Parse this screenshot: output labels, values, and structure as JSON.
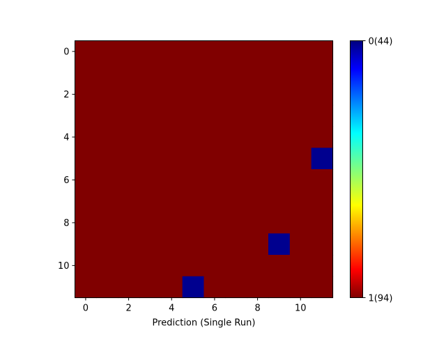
{
  "chart_data": {
    "type": "heatmap",
    "title": "",
    "xlabel": "Prediction (Single Run)",
    "ylabel": "",
    "rows": 12,
    "cols": 12,
    "x_ticks": [
      0,
      2,
      4,
      6,
      8,
      10
    ],
    "y_ticks": [
      0,
      2,
      4,
      6,
      8,
      10
    ],
    "x_tick_labels": [
      "0",
      "2",
      "4",
      "6",
      "8",
      "10"
    ],
    "y_tick_labels": [
      "0",
      "2",
      "4",
      "6",
      "8",
      "10"
    ],
    "default_value": 1,
    "exceptions": [
      {
        "row": 5,
        "col": 11,
        "value": 0
      },
      {
        "row": 9,
        "col": 9,
        "value": 0
      },
      {
        "row": 11,
        "col": 5,
        "value": 0
      }
    ],
    "colormap": "jet",
    "value_range": [
      1,
      0
    ],
    "colorbar": {
      "top_label": "0(44)",
      "bottom_label": "1(94)"
    },
    "colors": {
      "value_1": "#800000",
      "value_0": "#00008f"
    }
  }
}
